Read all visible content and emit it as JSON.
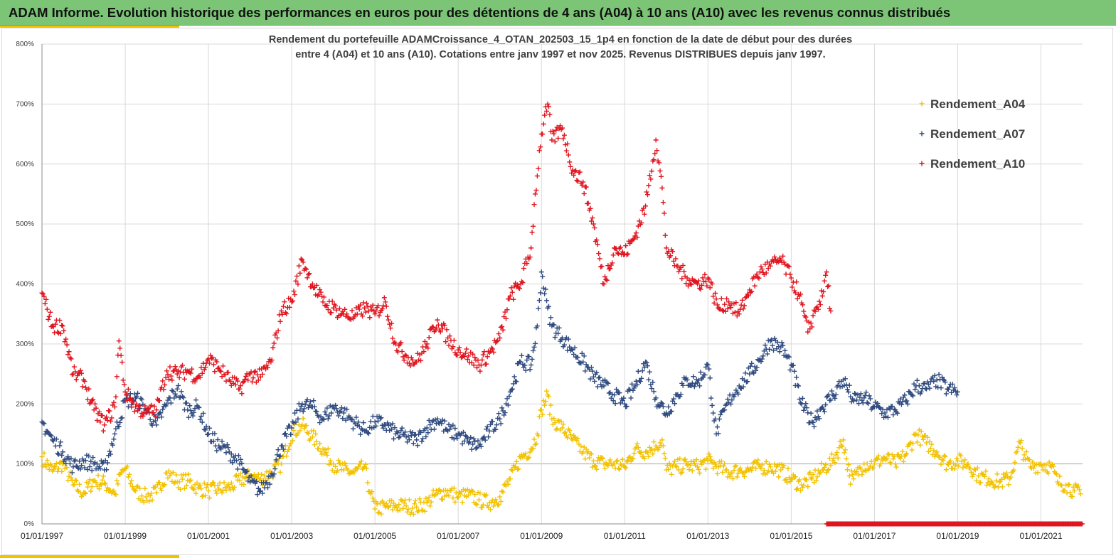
{
  "header": {
    "title": "ADAM Informe. Evolution historique des performances en euros pour des détentions de 4 ans (A04) à 10 ans (A10) avec les revenus connus distribués"
  },
  "colors": {
    "banner": "#7cc576",
    "accent": "#f2c200",
    "grid": "#d9d9d9",
    "a04": "#f2c200",
    "a07": "#2f4a7f",
    "a10": "#e0141e"
  },
  "chart_data": {
    "type": "scatter",
    "title_lines": [
      "Rendement du portefeuille ADAMCroissance_4_OTAN_202503_15_1p4  en fonction de la date de début pour des durées",
      "entre 4 (A04) et 10 ans (A10). Cotations entre janv 1997 et nov 2025. Revenus DISTRIBUES depuis janv 1997."
    ],
    "x_axis": {
      "min_year": 1997.0,
      "max_year": 2022.0,
      "tick_years": [
        1997,
        1999,
        2001,
        2003,
        2005,
        2007,
        2009,
        2011,
        2013,
        2015,
        2017,
        2019,
        2021
      ],
      "tick_labels": [
        "01/01/1997",
        "01/01/1999",
        "01/01/2001",
        "01/01/2003",
        "01/01/2005",
        "01/01/2007",
        "01/01/2009",
        "01/01/2011",
        "01/01/2013",
        "01/01/2015",
        "01/01/2017",
        "01/01/2019",
        "01/01/2021"
      ]
    },
    "y_axis": {
      "min": 0,
      "max": 800,
      "tick_values": [
        0,
        100,
        200,
        300,
        400,
        500,
        600,
        700,
        800
      ],
      "tick_labels": [
        "0%",
        "100%",
        "200%",
        "300%",
        "400%",
        "500%",
        "600%",
        "700%",
        "800%"
      ],
      "reference_line": 100
    },
    "legend_position": "top-right",
    "series": [
      {
        "name": "Rendement_A04",
        "color_key": "a04",
        "points": [
          [
            1997.0,
            112
          ],
          [
            1997.25,
            88
          ],
          [
            1997.5,
            100
          ],
          [
            1997.75,
            65
          ],
          [
            1998.0,
            52
          ],
          [
            1998.25,
            72
          ],
          [
            1998.5,
            68
          ],
          [
            1998.75,
            50
          ],
          [
            1998.9,
            85
          ],
          [
            1999.0,
            92
          ],
          [
            1999.25,
            55
          ],
          [
            1999.5,
            45
          ],
          [
            1999.75,
            52
          ],
          [
            2000.0,
            85
          ],
          [
            2000.25,
            70
          ],
          [
            2000.5,
            72
          ],
          [
            2000.75,
            60
          ],
          [
            2001.0,
            55
          ],
          [
            2001.25,
            58
          ],
          [
            2001.5,
            60
          ],
          [
            2001.75,
            72
          ],
          [
            2002.0,
            80
          ],
          [
            2002.25,
            75
          ],
          [
            2002.5,
            85
          ],
          [
            2002.75,
            100
          ],
          [
            2003.0,
            150
          ],
          [
            2003.25,
            165
          ],
          [
            2003.5,
            145
          ],
          [
            2003.75,
            125
          ],
          [
            2004.0,
            100
          ],
          [
            2004.25,
            90
          ],
          [
            2004.5,
            85
          ],
          [
            2004.75,
            95
          ],
          [
            2004.9,
            50
          ],
          [
            2005.0,
            25
          ],
          [
            2005.25,
            28
          ],
          [
            2005.5,
            30
          ],
          [
            2005.75,
            30
          ],
          [
            2006.0,
            28
          ],
          [
            2006.25,
            35
          ],
          [
            2006.5,
            50
          ],
          [
            2006.75,
            55
          ],
          [
            2007.0,
            45
          ],
          [
            2007.25,
            48
          ],
          [
            2007.5,
            40
          ],
          [
            2007.75,
            35
          ],
          [
            2008.0,
            45
          ],
          [
            2008.25,
            75
          ],
          [
            2008.5,
            110
          ],
          [
            2008.75,
            125
          ],
          [
            2008.9,
            150
          ],
          [
            2009.0,
            190
          ],
          [
            2009.15,
            215
          ],
          [
            2009.25,
            175
          ],
          [
            2009.5,
            160
          ],
          [
            2009.75,
            140
          ],
          [
            2010.0,
            120
          ],
          [
            2010.25,
            105
          ],
          [
            2010.5,
            100
          ],
          [
            2010.75,
            100
          ],
          [
            2011.0,
            95
          ],
          [
            2011.25,
            125
          ],
          [
            2011.5,
            120
          ],
          [
            2011.75,
            130
          ],
          [
            2011.9,
            140
          ],
          [
            2012.0,
            90
          ],
          [
            2012.25,
            95
          ],
          [
            2012.5,
            98
          ],
          [
            2012.75,
            95
          ],
          [
            2013.0,
            105
          ],
          [
            2013.25,
            95
          ],
          [
            2013.5,
            85
          ],
          [
            2013.75,
            90
          ],
          [
            2014.0,
            90
          ],
          [
            2014.25,
            95
          ],
          [
            2014.5,
            95
          ],
          [
            2014.75,
            90
          ],
          [
            2015.0,
            75
          ],
          [
            2015.25,
            65
          ],
          [
            2015.5,
            75
          ],
          [
            2015.75,
            90
          ],
          [
            2016.0,
            105
          ],
          [
            2016.25,
            140
          ],
          [
            2016.4,
            80
          ],
          [
            2016.5,
            75
          ],
          [
            2016.75,
            100
          ],
          [
            2017.0,
            100
          ],
          [
            2017.25,
            110
          ],
          [
            2017.5,
            100
          ],
          [
            2017.75,
            115
          ],
          [
            2018.0,
            150
          ],
          [
            2018.25,
            135
          ],
          [
            2018.5,
            120
          ],
          [
            2018.75,
            100
          ],
          [
            2019.0,
            105
          ],
          [
            2019.25,
            100
          ],
          [
            2019.5,
            80
          ],
          [
            2019.75,
            75
          ],
          [
            2020.0,
            70
          ],
          [
            2020.25,
            75
          ],
          [
            2020.5,
            135
          ],
          [
            2020.6,
            115
          ],
          [
            2020.75,
            95
          ],
          [
            2021.0,
            100
          ],
          [
            2021.25,
            95
          ],
          [
            2021.4,
            70
          ],
          [
            2021.6,
            65
          ],
          [
            2021.8,
            55
          ],
          [
            2021.95,
            50
          ]
        ]
      },
      {
        "name": "Rendement_A07",
        "color_key": "a07",
        "points": [
          [
            1997.0,
            170
          ],
          [
            1997.25,
            140
          ],
          [
            1997.5,
            120
          ],
          [
            1997.75,
            95
          ],
          [
            1998.0,
            105
          ],
          [
            1998.25,
            100
          ],
          [
            1998.5,
            90
          ],
          [
            1998.75,
            150
          ],
          [
            1999.0,
            205
          ],
          [
            1999.25,
            210
          ],
          [
            1999.5,
            190
          ],
          [
            1999.75,
            165
          ],
          [
            2000.0,
            200
          ],
          [
            2000.25,
            225
          ],
          [
            2000.5,
            190
          ],
          [
            2000.75,
            195
          ],
          [
            2001.0,
            150
          ],
          [
            2001.25,
            130
          ],
          [
            2001.5,
            120
          ],
          [
            2001.75,
            100
          ],
          [
            2002.0,
            70
          ],
          [
            2002.25,
            55
          ],
          [
            2002.5,
            80
          ],
          [
            2002.75,
            130
          ],
          [
            2003.0,
            160
          ],
          [
            2003.25,
            200
          ],
          [
            2003.5,
            195
          ],
          [
            2003.75,
            175
          ],
          [
            2004.0,
            195
          ],
          [
            2004.25,
            185
          ],
          [
            2004.5,
            170
          ],
          [
            2004.75,
            155
          ],
          [
            2005.0,
            170
          ],
          [
            2005.25,
            165
          ],
          [
            2005.5,
            150
          ],
          [
            2005.75,
            145
          ],
          [
            2006.0,
            140
          ],
          [
            2006.25,
            160
          ],
          [
            2006.5,
            175
          ],
          [
            2006.75,
            155
          ],
          [
            2007.0,
            150
          ],
          [
            2007.25,
            135
          ],
          [
            2007.5,
            130
          ],
          [
            2007.75,
            155
          ],
          [
            2008.0,
            175
          ],
          [
            2008.25,
            220
          ],
          [
            2008.5,
            270
          ],
          [
            2008.75,
            265
          ],
          [
            2008.9,
            330
          ],
          [
            2009.0,
            420
          ],
          [
            2009.15,
            360
          ],
          [
            2009.25,
            330
          ],
          [
            2009.5,
            310
          ],
          [
            2009.75,
            290
          ],
          [
            2010.0,
            270
          ],
          [
            2010.25,
            245
          ],
          [
            2010.5,
            230
          ],
          [
            2010.75,
            215
          ],
          [
            2011.0,
            200
          ],
          [
            2011.25,
            230
          ],
          [
            2011.5,
            270
          ],
          [
            2011.75,
            210
          ],
          [
            2012.0,
            185
          ],
          [
            2012.25,
            215
          ],
          [
            2012.5,
            240
          ],
          [
            2012.75,
            235
          ],
          [
            2013.0,
            265
          ],
          [
            2013.2,
            150
          ],
          [
            2013.4,
            190
          ],
          [
            2013.6,
            215
          ],
          [
            2013.75,
            230
          ],
          [
            2014.0,
            250
          ],
          [
            2014.25,
            275
          ],
          [
            2014.5,
            305
          ],
          [
            2014.75,
            295
          ],
          [
            2015.0,
            265
          ],
          [
            2015.25,
            200
          ],
          [
            2015.5,
            170
          ],
          [
            2015.75,
            195
          ],
          [
            2016.0,
            215
          ],
          [
            2016.25,
            240
          ],
          [
            2016.5,
            205
          ],
          [
            2016.75,
            210
          ],
          [
            2017.0,
            195
          ],
          [
            2017.25,
            185
          ],
          [
            2017.5,
            190
          ],
          [
            2017.75,
            205
          ],
          [
            2018.0,
            230
          ],
          [
            2018.25,
            225
          ],
          [
            2018.5,
            240
          ],
          [
            2018.75,
            225
          ],
          [
            2019.0,
            220
          ]
        ]
      },
      {
        "name": "Rendement_A10",
        "color_key": "a10",
        "points": [
          [
            1997.0,
            385
          ],
          [
            1997.25,
            330
          ],
          [
            1997.5,
            330
          ],
          [
            1997.75,
            250
          ],
          [
            1998.0,
            240
          ],
          [
            1998.25,
            190
          ],
          [
            1998.5,
            165
          ],
          [
            1998.75,
            195
          ],
          [
            1998.85,
            305
          ],
          [
            1999.0,
            220
          ],
          [
            1999.25,
            195
          ],
          [
            1999.5,
            185
          ],
          [
            1999.75,
            190
          ],
          [
            2000.0,
            255
          ],
          [
            2000.25,
            250
          ],
          [
            2000.5,
            255
          ],
          [
            2000.75,
            245
          ],
          [
            2001.0,
            275
          ],
          [
            2001.25,
            260
          ],
          [
            2001.5,
            240
          ],
          [
            2001.75,
            225
          ],
          [
            2002.0,
            250
          ],
          [
            2002.25,
            245
          ],
          [
            2002.5,
            270
          ],
          [
            2002.75,
            355
          ],
          [
            2003.0,
            370
          ],
          [
            2003.25,
            440
          ],
          [
            2003.5,
            400
          ],
          [
            2003.75,
            370
          ],
          [
            2004.0,
            360
          ],
          [
            2004.25,
            350
          ],
          [
            2004.5,
            345
          ],
          [
            2004.75,
            360
          ],
          [
            2005.0,
            350
          ],
          [
            2005.25,
            370
          ],
          [
            2005.5,
            300
          ],
          [
            2005.75,
            280
          ],
          [
            2006.0,
            270
          ],
          [
            2006.25,
            300
          ],
          [
            2006.5,
            340
          ],
          [
            2006.75,
            310
          ],
          [
            2007.0,
            290
          ],
          [
            2007.25,
            280
          ],
          [
            2007.5,
            265
          ],
          [
            2007.75,
            285
          ],
          [
            2008.0,
            310
          ],
          [
            2008.25,
            380
          ],
          [
            2008.5,
            400
          ],
          [
            2008.75,
            460
          ],
          [
            2008.85,
            550
          ],
          [
            2009.0,
            650
          ],
          [
            2009.15,
            700
          ],
          [
            2009.25,
            640
          ],
          [
            2009.5,
            660
          ],
          [
            2009.75,
            590
          ],
          [
            2010.0,
            570
          ],
          [
            2010.25,
            500
          ],
          [
            2010.5,
            400
          ],
          [
            2010.75,
            460
          ],
          [
            2011.0,
            450
          ],
          [
            2011.25,
            480
          ],
          [
            2011.5,
            530
          ],
          [
            2011.75,
            640
          ],
          [
            2011.9,
            560
          ],
          [
            2012.0,
            460
          ],
          [
            2012.25,
            430
          ],
          [
            2012.5,
            410
          ],
          [
            2012.75,
            400
          ],
          [
            2013.0,
            410
          ],
          [
            2013.25,
            360
          ],
          [
            2013.5,
            370
          ],
          [
            2013.75,
            350
          ],
          [
            2014.0,
            390
          ],
          [
            2014.25,
            420
          ],
          [
            2014.5,
            430
          ],
          [
            2014.75,
            440
          ],
          [
            2015.0,
            410
          ],
          [
            2015.2,
            380
          ],
          [
            2015.4,
            320
          ],
          [
            2015.6,
            360
          ],
          [
            2015.75,
            380
          ],
          [
            2015.85,
            420
          ],
          [
            2015.95,
            355
          ]
        ]
      }
    ],
    "zero_series": {
      "color_key": "a10",
      "from_year": 2015.85,
      "to_year": 2022.0,
      "value": 0
    }
  }
}
